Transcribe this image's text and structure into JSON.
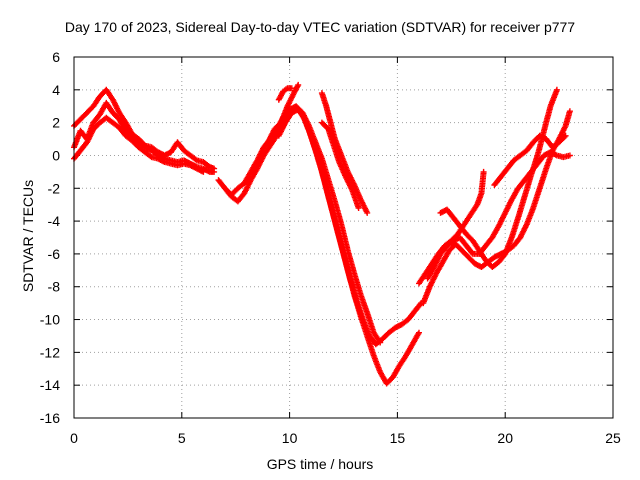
{
  "chart_data": {
    "type": "scatter",
    "title": "Day 170 of 2023, Sidereal Day-to-day VTEC variation (SDTVAR) for receiver p777",
    "xlabel": "GPS time / hours",
    "ylabel": "SDTVAR / TECUs",
    "xlim": [
      0,
      25
    ],
    "ylim": [
      -16,
      6
    ],
    "xticks": [
      0,
      5,
      10,
      15,
      20,
      25
    ],
    "yticks": [
      -16,
      -14,
      -12,
      -10,
      -8,
      -6,
      -4,
      -2,
      0,
      2,
      4,
      6
    ],
    "grid": true,
    "marker": "+",
    "color": "#ff0000",
    "series": [
      {
        "segments": [
          [
            [
              0.0,
              0.5
            ],
            [
              0.3,
              1.5
            ],
            [
              0.6,
              1.0
            ],
            [
              0.9,
              2.0
            ],
            [
              1.2,
              2.5
            ],
            [
              1.5,
              3.2
            ],
            [
              1.8,
              2.6
            ],
            [
              2.1,
              2.2
            ],
            [
              2.4,
              1.5
            ],
            [
              2.7,
              1.1
            ],
            [
              3.0,
              0.8
            ],
            [
              3.3,
              0.5
            ],
            [
              3.6,
              0.3
            ],
            [
              3.9,
              0.0
            ],
            [
              4.2,
              -0.2
            ],
            [
              4.5,
              -0.3
            ],
            [
              4.8,
              -0.4
            ],
            [
              5.1,
              -0.3
            ],
            [
              5.4,
              -0.5
            ],
            [
              5.7,
              -0.7
            ],
            [
              6.0,
              -0.8
            ],
            [
              6.3,
              -1.0
            ],
            [
              6.5,
              -1.0
            ]
          ],
          [
            [
              6.7,
              -1.5
            ],
            [
              7.0,
              -2.0
            ],
            [
              7.3,
              -2.5
            ],
            [
              7.6,
              -2.8
            ],
            [
              7.9,
              -2.3
            ],
            [
              8.2,
              -1.5
            ],
            [
              8.5,
              -0.8
            ],
            [
              8.8,
              0.0
            ],
            [
              9.1,
              0.6
            ],
            [
              9.4,
              1.2
            ],
            [
              9.7,
              1.8
            ],
            [
              10.0,
              2.5
            ],
            [
              10.3,
              2.9
            ],
            [
              10.6,
              2.5
            ],
            [
              10.9,
              1.5
            ],
            [
              11.2,
              0.3
            ],
            [
              11.5,
              -1.0
            ],
            [
              11.8,
              -2.5
            ],
            [
              12.1,
              -4.0
            ],
            [
              12.4,
              -5.5
            ],
            [
              12.7,
              -7.0
            ],
            [
              13.0,
              -8.5
            ],
            [
              13.3,
              -9.8
            ],
            [
              13.6,
              -11.0
            ],
            [
              13.9,
              -12.2
            ],
            [
              14.2,
              -13.2
            ],
            [
              14.5,
              -13.9
            ],
            [
              14.8,
              -13.5
            ],
            [
              15.1,
              -12.8
            ],
            [
              15.4,
              -12.2
            ],
            [
              15.7,
              -11.5
            ],
            [
              16.0,
              -10.8
            ]
          ],
          [
            [
              16.2,
              -9.0
            ],
            [
              16.5,
              -8.0
            ],
            [
              16.8,
              -7.2
            ],
            [
              17.1,
              -6.5
            ],
            [
              17.4,
              -5.8
            ],
            [
              17.7,
              -5.4
            ],
            [
              18.0,
              -5.8
            ],
            [
              18.3,
              -6.2
            ],
            [
              18.6,
              -6.6
            ],
            [
              18.9,
              -6.8
            ],
            [
              19.2,
              -6.5
            ],
            [
              19.5,
              -6.2
            ],
            [
              19.8,
              -6.0
            ],
            [
              20.1,
              -5.8
            ],
            [
              20.4,
              -5.5
            ],
            [
              20.7,
              -5.0
            ],
            [
              21.0,
              -4.2
            ],
            [
              21.3,
              -3.2
            ],
            [
              21.6,
              -2.0
            ],
            [
              21.9,
              -0.8
            ],
            [
              22.2,
              0.3
            ],
            [
              22.5,
              1.0
            ],
            [
              22.8,
              1.8
            ],
            [
              23.0,
              2.7
            ]
          ]
        ]
      },
      {
        "segments": [
          [
            [
              0.0,
              1.8
            ],
            [
              0.3,
              2.2
            ],
            [
              0.6,
              2.6
            ],
            [
              0.9,
              3.0
            ],
            [
              1.2,
              3.6
            ],
            [
              1.5,
              4.0
            ],
            [
              1.8,
              3.4
            ],
            [
              2.1,
              2.6
            ],
            [
              2.4,
              2.0
            ],
            [
              2.7,
              1.3
            ],
            [
              3.0,
              1.0
            ],
            [
              3.3,
              0.6
            ],
            [
              3.6,
              0.5
            ],
            [
              3.9,
              0.2
            ],
            [
              4.2,
              0.0
            ],
            [
              4.5,
              0.2
            ],
            [
              4.8,
              0.8
            ],
            [
              5.1,
              0.3
            ],
            [
              5.4,
              0.0
            ],
            [
              5.7,
              -0.3
            ],
            [
              6.0,
              -0.4
            ],
            [
              6.3,
              -0.7
            ],
            [
              6.5,
              -0.8
            ]
          ],
          [
            [
              9.5,
              1.2
            ],
            [
              9.8,
              2.0
            ],
            [
              10.1,
              2.6
            ],
            [
              10.4,
              2.8
            ],
            [
              10.7,
              2.2
            ],
            [
              11.0,
              1.2
            ],
            [
              11.3,
              0.0
            ],
            [
              11.6,
              -1.5
            ],
            [
              11.9,
              -3.0
            ],
            [
              12.2,
              -4.5
            ],
            [
              12.5,
              -6.0
            ],
            [
              12.8,
              -7.5
            ],
            [
              13.1,
              -8.8
            ],
            [
              13.4,
              -10.0
            ],
            [
              13.7,
              -11.0
            ],
            [
              14.0,
              -11.5
            ],
            [
              14.3,
              -11.2
            ],
            [
              14.6,
              -10.8
            ],
            [
              14.9,
              -10.5
            ],
            [
              15.2,
              -10.3
            ],
            [
              15.5,
              -10.0
            ],
            [
              15.8,
              -9.5
            ],
            [
              16.1,
              -9.0
            ]
          ],
          [
            [
              16.4,
              -7.5
            ],
            [
              16.7,
              -6.8
            ],
            [
              17.0,
              -6.0
            ],
            [
              17.3,
              -5.5
            ],
            [
              17.6,
              -5.2
            ],
            [
              17.9,
              -5.0
            ],
            [
              18.2,
              -5.5
            ],
            [
              18.5,
              -6.0
            ],
            [
              18.8,
              -6.0
            ],
            [
              19.1,
              -5.5
            ],
            [
              19.4,
              -5.0
            ],
            [
              19.7,
              -4.3
            ],
            [
              20.0,
              -3.5
            ],
            [
              20.3,
              -2.7
            ],
            [
              20.6,
              -2.0
            ],
            [
              20.9,
              -1.5
            ],
            [
              21.2,
              -1.0
            ],
            [
              21.5,
              -0.5
            ],
            [
              21.8,
              0.0
            ],
            [
              22.1,
              0.2
            ],
            [
              22.4,
              0.0
            ],
            [
              22.7,
              -0.1
            ],
            [
              23.0,
              0.0
            ]
          ]
        ]
      },
      {
        "segments": [
          [
            [
              0.0,
              -0.2
            ],
            [
              0.3,
              0.3
            ],
            [
              0.6,
              0.8
            ],
            [
              0.9,
              1.6
            ],
            [
              1.2,
              2.0
            ],
            [
              1.5,
              2.3
            ],
            [
              1.8,
              2.0
            ],
            [
              2.1,
              1.7
            ],
            [
              2.4,
              1.2
            ],
            [
              2.7,
              0.9
            ],
            [
              3.0,
              0.5
            ],
            [
              3.3,
              0.2
            ],
            [
              3.6,
              -0.1
            ],
            [
              3.9,
              -0.2
            ],
            [
              4.2,
              -0.4
            ],
            [
              4.5,
              -0.5
            ],
            [
              4.8,
              -0.6
            ],
            [
              5.1,
              -0.5
            ],
            [
              5.4,
              -0.6
            ],
            [
              5.7,
              -0.8
            ],
            [
              6.0,
              -1.0
            ]
          ],
          [
            [
              7.0,
              -2.0
            ],
            [
              7.3,
              -2.4
            ],
            [
              7.6,
              -2.0
            ],
            [
              7.9,
              -1.7
            ],
            [
              8.2,
              -1.0
            ],
            [
              8.5,
              -0.3
            ],
            [
              8.8,
              0.5
            ],
            [
              9.1,
              1.0
            ],
            [
              9.4,
              1.6
            ],
            [
              9.7,
              2.3
            ],
            [
              10.0,
              2.8
            ],
            [
              10.3,
              3.0
            ],
            [
              10.6,
              2.6
            ],
            [
              10.9,
              1.8
            ],
            [
              11.2,
              0.8
            ],
            [
              11.5,
              -0.2
            ],
            [
              11.8,
              -1.5
            ],
            [
              12.1,
              -2.8
            ],
            [
              12.4,
              -4.2
            ],
            [
              12.7,
              -5.8
            ],
            [
              13.0,
              -7.2
            ],
            [
              13.3,
              -8.5
            ],
            [
              13.6,
              -9.6
            ],
            [
              13.9,
              -10.8
            ],
            [
              14.2,
              -11.4
            ]
          ],
          [
            [
              16.0,
              -7.8
            ],
            [
              16.3,
              -7.2
            ],
            [
              16.6,
              -6.6
            ],
            [
              16.9,
              -6.0
            ],
            [
              17.2,
              -5.5
            ],
            [
              17.5,
              -5.2
            ],
            [
              17.8,
              -4.8
            ],
            [
              18.1,
              -4.2
            ],
            [
              18.4,
              -3.6
            ],
            [
              18.7,
              -3.0
            ],
            [
              18.9,
              -2.3
            ],
            [
              19.0,
              -1.0
            ]
          ],
          [
            [
              17.0,
              -3.5
            ],
            [
              17.3,
              -3.3
            ],
            [
              17.6,
              -3.8
            ],
            [
              17.9,
              -4.3
            ],
            [
              18.2,
              -4.8
            ],
            [
              18.5,
              -5.2
            ],
            [
              18.8,
              -5.8
            ],
            [
              19.1,
              -6.4
            ],
            [
              19.4,
              -6.8
            ],
            [
              19.7,
              -6.5
            ],
            [
              20.0,
              -6.0
            ],
            [
              20.3,
              -5.0
            ],
            [
              20.6,
              -3.8
            ],
            [
              20.9,
              -2.5
            ],
            [
              21.2,
              -1.2
            ],
            [
              21.5,
              0.0
            ],
            [
              21.8,
              1.5
            ],
            [
              22.1,
              3.0
            ],
            [
              22.4,
              4.0
            ]
          ],
          [
            [
              19.5,
              -1.8
            ],
            [
              19.8,
              -1.3
            ],
            [
              20.1,
              -0.8
            ],
            [
              20.4,
              -0.3
            ],
            [
              20.7,
              0.0
            ],
            [
              21.0,
              0.3
            ],
            [
              21.3,
              0.8
            ],
            [
              21.6,
              1.2
            ],
            [
              21.9,
              1.0
            ],
            [
              22.2,
              0.5
            ],
            [
              22.5,
              0.8
            ],
            [
              22.8,
              1.2
            ]
          ]
        ]
      },
      {
        "segments": [
          [
            [
              9.0,
              0.8
            ],
            [
              9.3,
              1.6
            ],
            [
              9.6,
              2.0
            ],
            [
              9.9,
              3.0
            ],
            [
              10.2,
              3.8
            ],
            [
              10.4,
              4.3
            ]
          ],
          [
            [
              11.5,
              2.0
            ],
            [
              11.8,
              1.6
            ],
            [
              12.0,
              0.8
            ],
            [
              12.3,
              -0.4
            ],
            [
              12.6,
              -1.3
            ],
            [
              12.9,
              -2.1
            ],
            [
              13.2,
              -3.2
            ]
          ],
          [
            [
              9.5,
              3.4
            ],
            [
              9.7,
              3.9
            ],
            [
              9.9,
              4.1
            ],
            [
              10.1,
              4.1
            ]
          ],
          [
            [
              11.5,
              3.8
            ],
            [
              11.7,
              3.0
            ],
            [
              11.9,
              2.0
            ],
            [
              12.1,
              1.0
            ],
            [
              12.4,
              0.0
            ],
            [
              12.7,
              -1.0
            ],
            [
              13.0,
              -1.8
            ],
            [
              13.3,
              -2.7
            ],
            [
              13.6,
              -3.5
            ]
          ]
        ]
      }
    ]
  }
}
